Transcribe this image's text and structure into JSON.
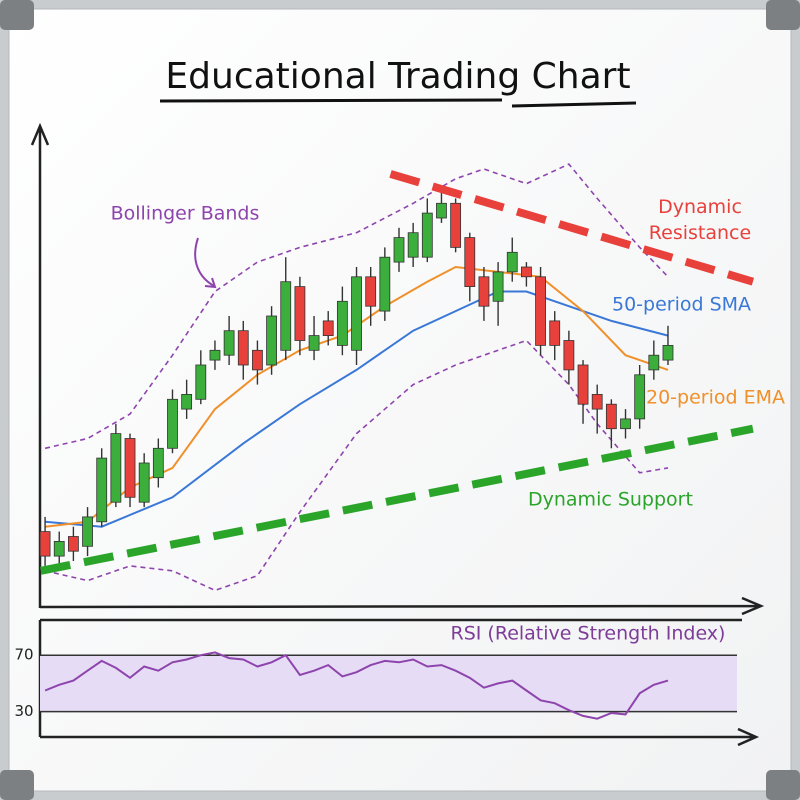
{
  "chart_data": [
    {
      "type": "candlestick",
      "title": "Educational Trading Chart",
      "xlim": [
        -0.5,
        50.5
      ],
      "ylim": [
        0,
        100
      ],
      "up_color": "#3cae3c",
      "down_color": "#e8413c",
      "open": [
        16,
        11,
        15,
        13,
        18,
        22,
        35,
        22,
        27,
        33,
        41,
        43,
        51,
        52,
        57,
        53,
        50,
        53,
        66,
        53,
        59,
        54,
        53,
        68,
        61,
        71,
        72,
        72,
        80,
        83,
        76,
        68,
        63,
        69,
        70,
        68,
        59,
        55,
        50,
        44,
        42,
        37,
        39,
        49,
        51
      ],
      "high": [
        19,
        16,
        17,
        21,
        33,
        38,
        36,
        32,
        35,
        45,
        47,
        53,
        55,
        60,
        59,
        55,
        62,
        72,
        68,
        60,
        61,
        66,
        70,
        70,
        74,
        78,
        79,
        84,
        86,
        84,
        77,
        70,
        71,
        76,
        71,
        70,
        61,
        57,
        51,
        46,
        43,
        41,
        50,
        55,
        58
      ],
      "low": [
        9,
        9,
        10,
        11,
        17,
        21,
        21,
        21,
        25,
        32,
        39,
        42,
        49,
        50,
        47,
        46,
        48,
        51,
        52,
        51,
        54,
        52,
        50,
        58,
        59,
        69,
        70,
        71,
        79,
        73,
        63,
        59,
        58,
        67,
        66,
        52,
        51,
        46,
        38,
        36,
        33,
        35,
        37,
        47,
        50
      ],
      "close": [
        11,
        14,
        12,
        19,
        31,
        36,
        23,
        30,
        33,
        43,
        44,
        50,
        53,
        57,
        50,
        49,
        60,
        67,
        55,
        56,
        56,
        63,
        68,
        62,
        72,
        76,
        77,
        81,
        83,
        74,
        66,
        62,
        69,
        73,
        68,
        54,
        54,
        49,
        42,
        41,
        37,
        39,
        48,
        52,
        54
      ],
      "series": [
        {
          "name": "50-period SMA",
          "color": "#3a78d8",
          "x": [
            0,
            4,
            9,
            14,
            18,
            22,
            26,
            29,
            32,
            34,
            37,
            40,
            44
          ],
          "values": [
            18,
            17,
            23,
            34,
            42,
            49,
            57,
            61,
            65,
            65,
            62,
            59,
            56
          ]
        },
        {
          "name": "20-period EMA",
          "color": "#f0902a",
          "x": [
            0,
            3,
            6,
            9,
            12,
            15,
            18,
            21,
            24,
            27,
            29,
            32,
            35,
            38,
            41,
            44
          ],
          "values": [
            17,
            18,
            25,
            29,
            41,
            48,
            53,
            56,
            62,
            67,
            70,
            69,
            68,
            61,
            52,
            49
          ]
        }
      ],
      "bands": [
        {
          "name": "Bollinger Bands",
          "color": "#8e44ad",
          "x": [
            0,
            3,
            6,
            9,
            12,
            15,
            18,
            22,
            26,
            29,
            31,
            34,
            37,
            39,
            42,
            44
          ],
          "upper": [
            33,
            35,
            40,
            52,
            65,
            71,
            74,
            77,
            83,
            88,
            90,
            87,
            91,
            84,
            74,
            68
          ],
          "lower": [
            8,
            6,
            9,
            8,
            4,
            7,
            20,
            36,
            46,
            50,
            52,
            55,
            46,
            38,
            28,
            29
          ]
        }
      ],
      "trendlines": [
        {
          "name": "Dynamic Resistance",
          "color": "#e8413c",
          "x": [
            24.4,
            50
          ],
          "values": [
            89,
            67
          ]
        },
        {
          "name": "Dynamic Support",
          "color": "#2aa52a",
          "x": [
            -0.3,
            50
          ],
          "values": [
            8,
            37
          ]
        }
      ]
    },
    {
      "type": "line",
      "title": "RSI (Relative Strength Index)",
      "xlim": [
        -0.5,
        50.5
      ],
      "ylim": [
        12,
        95
      ],
      "yticks": [
        30,
        70
      ],
      "band_color": "#e6dcf5",
      "series": [
        {
          "color": "#8e44ad",
          "values": [
            45,
            49,
            52,
            59,
            66,
            61,
            54,
            62,
            59,
            65,
            67,
            70,
            72,
            68,
            67,
            62,
            65,
            70,
            56,
            59,
            63,
            55,
            58,
            63,
            66,
            65,
            67,
            62,
            63,
            59,
            54,
            47,
            50,
            52,
            45,
            38,
            36,
            31,
            27,
            25,
            29,
            28,
            43,
            49,
            52
          ]
        }
      ]
    }
  ]
}
